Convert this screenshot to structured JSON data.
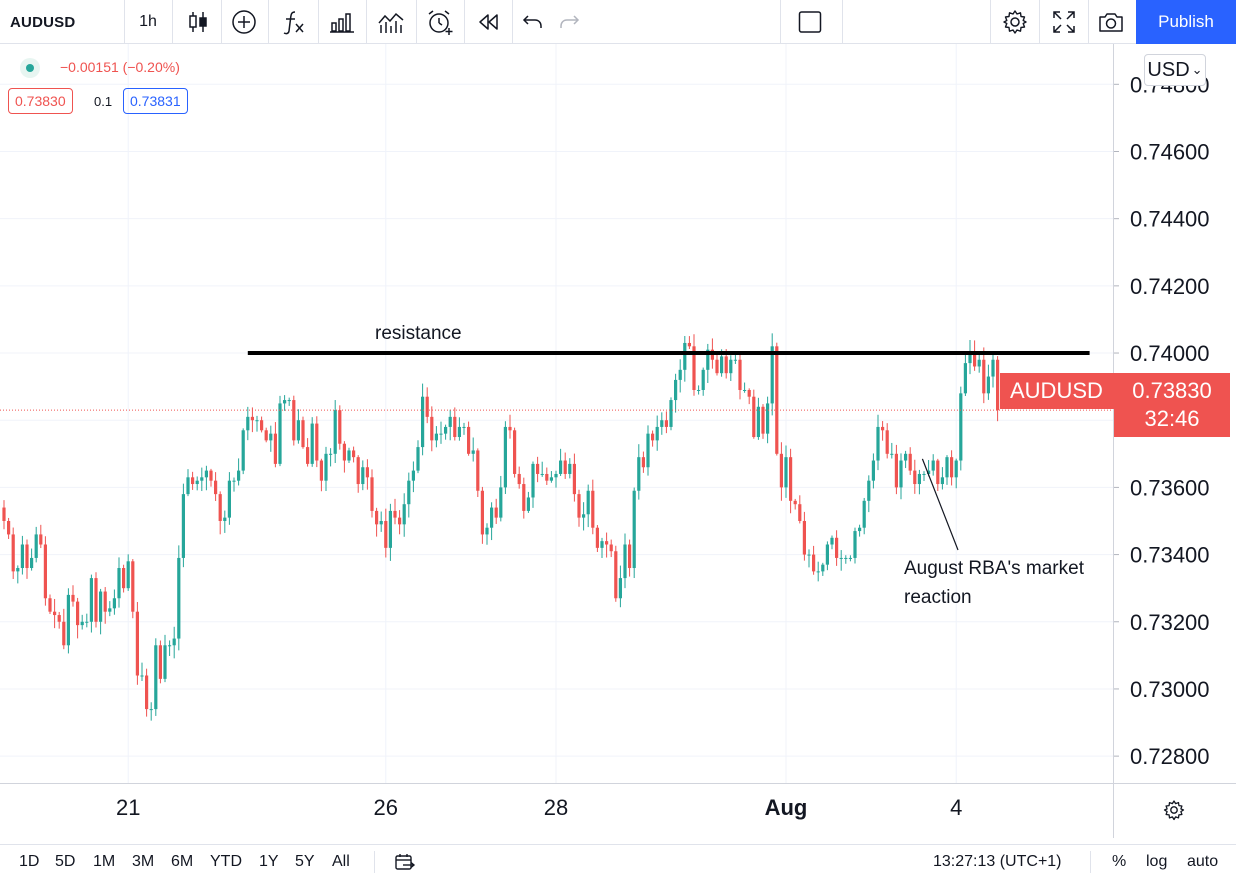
{
  "toolbar": {
    "symbol": "AUDUSD",
    "interval": "1h",
    "publish_label": "Publish",
    "icons": [
      "candles-icon",
      "add-circle-icon",
      "indicators-fx-icon",
      "templates-bar-icon",
      "compare-icon",
      "alert-clock-icon",
      "replay-icon",
      "undo-icon",
      "redo-icon",
      "layout-square-icon",
      "settings-gear-icon",
      "fullscreen-icon",
      "camera-icon"
    ]
  },
  "legend": {
    "change": "−0.00151 (−0.20%)",
    "sell_price": "0.73830",
    "spread": "0.1",
    "buy_price": "0.73831"
  },
  "price_axis": {
    "currency": "USD",
    "currency_caret": "⌄",
    "last_symbol": "AUDUSD",
    "last_price": "0.73830",
    "countdown": "32:46"
  },
  "bottom_bar": {
    "ranges": [
      "1D",
      "5D",
      "1M",
      "3M",
      "6M",
      "YTD",
      "1Y",
      "5Y",
      "All"
    ],
    "clock": "13:27:13 (UTC+1)",
    "percent_label": "%",
    "log_label": "log",
    "auto_label": "auto"
  },
  "chart_data": {
    "type": "candlestick",
    "symbol": "AUDUSD",
    "timeframe": "1h",
    "y_ticks": [
      "0.74800",
      "0.74600",
      "0.74400",
      "0.74200",
      "0.74000",
      "0.73800",
      "0.73600",
      "0.73400",
      "0.73200",
      "0.73000",
      "0.72800"
    ],
    "ylim": [
      0.7272,
      0.7492
    ],
    "x_ticks": [
      {
        "label": "21",
        "bar": 27
      },
      {
        "label": "26",
        "bar": 83
      },
      {
        "label": "28",
        "bar": 120
      },
      {
        "label": "Aug",
        "bar": 170,
        "bold": true
      },
      {
        "label": "4",
        "bar": 207
      }
    ],
    "last_price": 0.7383,
    "bull_color": "#26a69a",
    "bear_color": "#ef5350",
    "resistance": {
      "label": "resistance",
      "price": 0.74,
      "from_bar": 53,
      "to_bar": 236
    },
    "annotations": [
      {
        "text": [
          "August RBA's market",
          "reaction"
        ],
        "target_bar": 199,
        "target_price": 0.73685
      }
    ],
    "closes": [
      0.735,
      0.7346,
      0.7335,
      0.7336,
      0.7343,
      0.7336,
      0.7339,
      0.7346,
      0.7343,
      0.7327,
      0.7323,
      0.7322,
      0.732,
      0.7313,
      0.7328,
      0.7326,
      0.7319,
      0.732,
      0.732,
      0.7333,
      0.732,
      0.7329,
      0.7323,
      0.7324,
      0.7327,
      0.7336,
      0.733,
      0.7338,
      0.7323,
      0.7304,
      0.7304,
      0.7294,
      0.7294,
      0.7313,
      0.7303,
      0.7313,
      0.7313,
      0.7315,
      0.7339,
      0.7358,
      0.7363,
      0.7361,
      0.7362,
      0.7363,
      0.7365,
      0.7362,
      0.7358,
      0.735,
      0.7351,
      0.7362,
      0.7362,
      0.7365,
      0.7377,
      0.7381,
      0.738,
      0.738,
      0.7377,
      0.7374,
      0.7376,
      0.7367,
      0.7385,
      0.7386,
      0.7386,
      0.7374,
      0.738,
      0.7372,
      0.7367,
      0.7379,
      0.7368,
      0.7362,
      0.737,
      0.737,
      0.7383,
      0.7373,
      0.7368,
      0.7371,
      0.7369,
      0.7361,
      0.7366,
      0.7363,
      0.7353,
      0.7349,
      0.735,
      0.7342,
      0.7353,
      0.7351,
      0.7349,
      0.7355,
      0.7362,
      0.7365,
      0.7372,
      0.7387,
      0.7381,
      0.7374,
      0.7376,
      0.7376,
      0.7378,
      0.7381,
      0.7375,
      0.7378,
      0.7378,
      0.737,
      0.7371,
      0.7359,
      0.7346,
      0.7348,
      0.7354,
      0.7351,
      0.736,
      0.7378,
      0.7377,
      0.7364,
      0.7361,
      0.7353,
      0.7357,
      0.7367,
      0.7364,
      0.7364,
      0.7362,
      0.7363,
      0.7364,
      0.7368,
      0.7364,
      0.7367,
      0.7358,
      0.7351,
      0.7352,
      0.7359,
      0.7348,
      0.7342,
      0.7344,
      0.7343,
      0.7341,
      0.7327,
      0.7333,
      0.7343,
      0.7336,
      0.7359,
      0.7369,
      0.7366,
      0.7376,
      0.7374,
      0.7378,
      0.738,
      0.7378,
      0.7386,
      0.7392,
      0.7395,
      0.7403,
      0.7402,
      0.7389,
      0.7389,
      0.7395,
      0.7401,
      0.7398,
      0.7394,
      0.7399,
      0.7394,
      0.7398,
      0.7398,
      0.7389,
      0.7389,
      0.7387,
      0.7375,
      0.7384,
      0.7376,
      0.7385,
      0.7402,
      0.737,
      0.736,
      0.7369,
      0.7356,
      0.7355,
      0.735,
      0.734,
      0.734,
      0.7335,
      0.7335,
      0.7337,
      0.7343,
      0.7345,
      0.7339,
      0.7339,
      0.7339,
      0.7339,
      0.7347,
      0.7348,
      0.7356,
      0.7362,
      0.7368,
      0.7378,
      0.7377,
      0.737,
      0.737,
      0.736,
      0.7368,
      0.737,
      0.7365,
      0.7361,
      0.7364,
      0.7364,
      0.7365,
      0.7368,
      0.7361,
      0.7363,
      0.7369,
      0.7363,
      0.7368,
      0.7388,
      0.7397,
      0.74,
      0.7396,
      0.7398,
      0.7388,
      0.7393,
      0.7398,
      0.7383
    ]
  }
}
